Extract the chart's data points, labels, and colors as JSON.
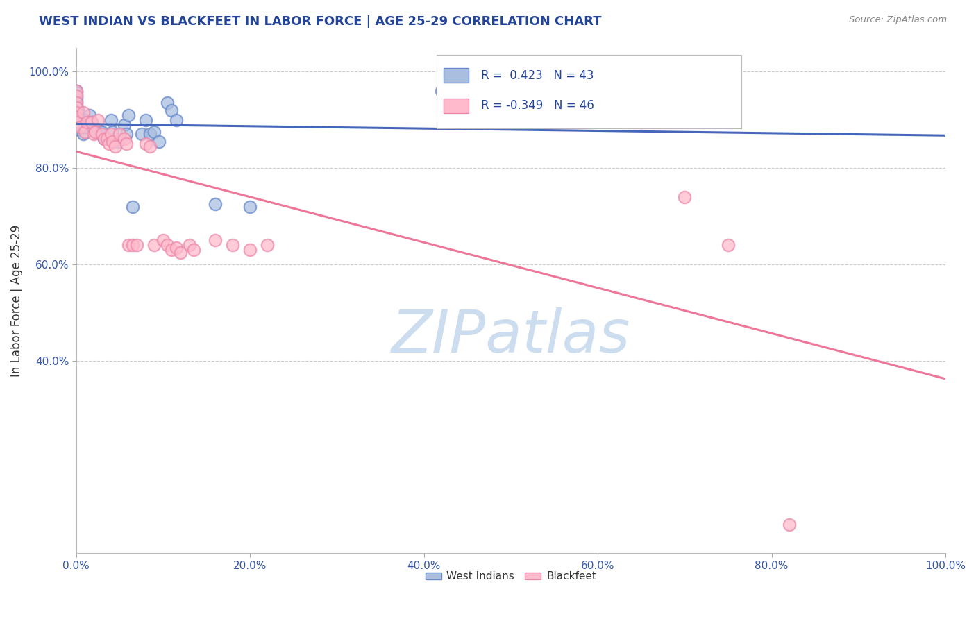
{
  "title": "WEST INDIAN VS BLACKFEET IN LABOR FORCE | AGE 25-29 CORRELATION CHART",
  "source": "Source: ZipAtlas.com",
  "ylabel": "In Labor Force | Age 25-29",
  "xlim": [
    0.0,
    1.0
  ],
  "ylim": [
    0.0,
    1.05
  ],
  "xtick_vals": [
    0.0,
    0.2,
    0.4,
    0.6,
    0.8,
    1.0
  ],
  "xtick_labels": [
    "0.0%",
    "20.0%",
    "40.0%",
    "60.0%",
    "80.0%",
    "100.0%"
  ],
  "ytick_vals": [
    0.4,
    0.6,
    0.8,
    1.0
  ],
  "ytick_labels": [
    "40.0%",
    "60.0%",
    "80.0%",
    "100.0%"
  ],
  "legend1_label": "West Indians",
  "legend2_label": "Blackfeet",
  "R1": 0.423,
  "N1": 43,
  "R2": -0.349,
  "N2": 46,
  "blue_scatter_color": "#AABFE0",
  "blue_edge_color": "#6688CC",
  "pink_scatter_color": "#FFBBCC",
  "pink_edge_color": "#EE88AA",
  "blue_line_color": "#4466BB",
  "pink_line_color": "#EE7799",
  "watermark_color": "#CCDDEF",
  "background_color": "#FFFFFF",
  "grid_color": "#CCCCCC",
  "title_color": "#224499",
  "source_color": "#888888",
  "ylabel_color": "#333333",
  "tick_color": "#3355AA",
  "west_indian_x": [
    0.0,
    0.0,
    0.0,
    0.0,
    0.0,
    0.0,
    0.0,
    0.0,
    0.002,
    0.002,
    0.002,
    0.003,
    0.003,
    0.008,
    0.008,
    0.01,
    0.01,
    0.015,
    0.018,
    0.02,
    0.025,
    0.028,
    0.03,
    0.032,
    0.04,
    0.042,
    0.048,
    0.055,
    0.058,
    0.06,
    0.065,
    0.075,
    0.08,
    0.085,
    0.09,
    0.095,
    0.105,
    0.11,
    0.115,
    0.16,
    0.2,
    0.42,
    0.44
  ],
  "west_indian_y": [
    0.96,
    0.955,
    0.95,
    0.945,
    0.94,
    0.935,
    0.93,
    0.925,
    0.92,
    0.91,
    0.9,
    0.89,
    0.88,
    0.895,
    0.87,
    0.9,
    0.885,
    0.91,
    0.895,
    0.88,
    0.88,
    0.87,
    0.875,
    0.86,
    0.9,
    0.875,
    0.855,
    0.89,
    0.87,
    0.91,
    0.72,
    0.87,
    0.9,
    0.87,
    0.875,
    0.855,
    0.935,
    0.92,
    0.9,
    0.725,
    0.72,
    0.96,
    0.97
  ],
  "blackfeet_x": [
    0.0,
    0.0,
    0.0,
    0.0,
    0.0,
    0.0,
    0.0,
    0.005,
    0.008,
    0.01,
    0.012,
    0.018,
    0.02,
    0.022,
    0.025,
    0.03,
    0.032,
    0.035,
    0.038,
    0.04,
    0.042,
    0.045,
    0.05,
    0.055,
    0.058,
    0.06,
    0.065,
    0.07,
    0.08,
    0.085,
    0.09,
    0.1,
    0.105,
    0.11,
    0.115,
    0.12,
    0.13,
    0.135,
    0.16,
    0.18,
    0.2,
    0.22,
    0.65,
    0.7,
    0.75,
    0.82
  ],
  "blackfeet_y": [
    0.96,
    0.95,
    0.935,
    0.925,
    0.915,
    0.905,
    0.895,
    0.885,
    0.915,
    0.875,
    0.895,
    0.895,
    0.87,
    0.875,
    0.9,
    0.87,
    0.86,
    0.86,
    0.85,
    0.87,
    0.855,
    0.845,
    0.87,
    0.86,
    0.85,
    0.64,
    0.64,
    0.64,
    0.85,
    0.845,
    0.64,
    0.65,
    0.64,
    0.63,
    0.635,
    0.625,
    0.64,
    0.63,
    0.65,
    0.64,
    0.63,
    0.64,
    0.895,
    0.74,
    0.64,
    0.06
  ]
}
